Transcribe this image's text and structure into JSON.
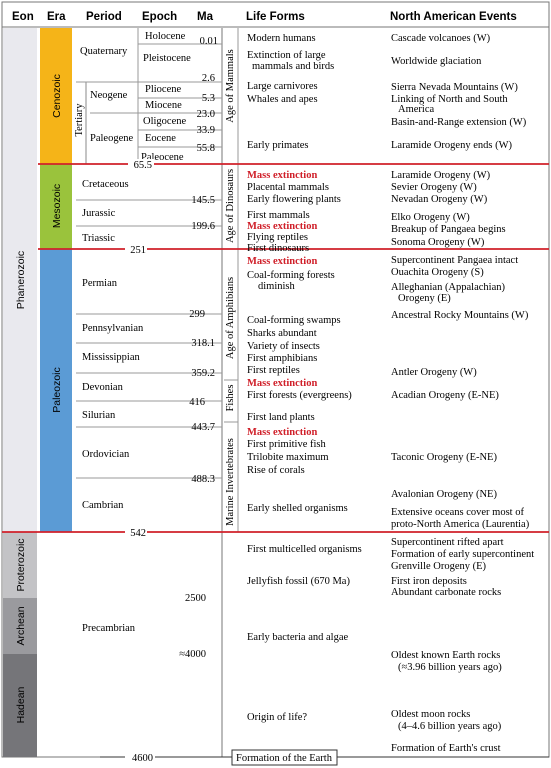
{
  "headers": {
    "eon": "Eon",
    "era": "Era",
    "period": "Period",
    "epoch": "Epoch",
    "ma": "Ma",
    "life": "Life Forms",
    "events": "North American Events"
  },
  "eons": {
    "phanerozoic": "Phanerozoic",
    "proterozoic": "Proterozoic",
    "archean": "Archean",
    "hadean": "Hadean"
  },
  "eras": {
    "cenozoic": "Cenozoic",
    "mesozoic": "Mesozoic",
    "paleozoic": "Paleozoic",
    "tertiary": "Tertiary"
  },
  "periods": {
    "quaternary": "Quaternary",
    "neogene": "Neogene",
    "paleogene": "Paleogene",
    "cretaceous": "Cretaceous",
    "jurassic": "Jurassic",
    "triassic": "Triassic",
    "permian": "Permian",
    "pennsylvanian": "Pennsylvanian",
    "mississippian": "Mississippian",
    "devonian": "Devonian",
    "silurian": "Silurian",
    "ordovician": "Ordovician",
    "cambrian": "Cambrian",
    "precambrian": "Precambrian"
  },
  "epochs": {
    "holocene": "Holocene",
    "pleistocene": "Pleistocene",
    "pliocene": "Pliocene",
    "miocene": "Miocene",
    "oligocene": "Oligocene",
    "eocene": "Eocene",
    "paleocene": "Paleocene"
  },
  "ma": {
    "m001": "0.01",
    "m26": "2.6",
    "m53": "5.3",
    "m230": "23.0",
    "m339": "33.9",
    "m558": "55.8",
    "m655": "65.5",
    "m1455": "145.5",
    "m1996": "199.6",
    "m251": "251",
    "m299": "299",
    "m3181": "318.1",
    "m3592": "359.2",
    "m416": "416",
    "m4437": "443.7",
    "m4883": "488.3",
    "m542": "542",
    "m2500": "2500",
    "m4000": "≈4000",
    "m4600": "4600"
  },
  "ages": {
    "mammals": "Age of Mammals",
    "dinosaurs": "Age of Dinosaurs",
    "amphibians": "Age of Amphibians",
    "fishes": "Fishes",
    "invertebrates": "Marine Invertebrates"
  },
  "life": {
    "l1": "Modern humans",
    "l2": "Extinction of large",
    "l3": "mammals and birds",
    "l4": "Large carnivores",
    "l5": "Whales and apes",
    "l6": "Early primates",
    "l7": "Mass extinction",
    "l8": "Placental mammals",
    "l9": "Early flowering plants",
    "l10": "First mammals",
    "l11": "Mass extinction",
    "l12": "Flying reptiles",
    "l13": "First dinosaurs",
    "l14": "Mass extinction",
    "l15": "Coal-forming forests",
    "l16": "diminish",
    "l17": "Coal-forming swamps",
    "l18": "Sharks abundant",
    "l19": "Variety of insects",
    "l20": "First amphibians",
    "l21": "First reptiles",
    "l22": "Mass extinction",
    "l23": "First forests (evergreens)",
    "l24": "First land plants",
    "l25": "Mass extinction",
    "l26": "First primitive fish",
    "l27": "Trilobite maximum",
    "l28": "Rise of corals",
    "l29": "Early shelled organisms",
    "l30": "First multicelled organisms",
    "l31": "Jellyfish fossil (670 Ma)",
    "l32": "Early bacteria and algae",
    "l33": "Origin of life?"
  },
  "events": {
    "e1": "Cascade volcanoes (W)",
    "e2": "Worldwide glaciation",
    "e3": "Sierra Nevada Mountains (W)",
    "e4": "Linking of North and South",
    "e5": "America",
    "e6": "Basin-and-Range extension (W)",
    "e7": "Laramide Orogeny ends (W)",
    "e8": "Laramide Orogeny (W)",
    "e9": "Sevier Orogeny (W)",
    "e10": "Nevadan Orogeny (W)",
    "e11": "Elko Orogeny (W)",
    "e12": "Breakup of Pangaea begins",
    "e13": "Sonoma Orogeny (W)",
    "e14": "Supercontinent Pangaea intact",
    "e15": "Ouachita Orogeny (S)",
    "e16": "Alleghanian (Appalachian)",
    "e17": "Orogeny (E)",
    "e18": "Ancestral Rocky Mountains (W)",
    "e19": "Antler Orogeny (W)",
    "e20": "Acadian Orogeny (E-NE)",
    "e21": "Taconic Orogeny (E-NE)",
    "e22": "Avalonian Orogeny (NE)",
    "e23": "Extensive oceans cover most of",
    "e24": "proto-North America (Laurentia)",
    "e25": "Supercontinent rifted apart",
    "e26": "Formation of early supercontinent",
    "e27": "Grenville Orogeny (E)",
    "e28": "First iron deposits",
    "e29": "Abundant carbonate rocks",
    "e30": "Oldest known Earth rocks",
    "e31": "(≈3.96 billion years ago)",
    "e32": "Oldest moon rocks",
    "e33": "(4–4.6 billion years ago)",
    "e34": "Formation of Earth's crust"
  },
  "formation": "Formation of the Earth",
  "colors": {
    "cenozoic": "#f5b418",
    "mesozoic": "#9ac33c",
    "paleozoic": "#5b9bd5",
    "phanerozoic": "#e9e9ee",
    "proterozoic": "#c3c3c6",
    "archean": "#9a9a9e",
    "hadean": "#757579",
    "boundary": "#d0202a"
  }
}
